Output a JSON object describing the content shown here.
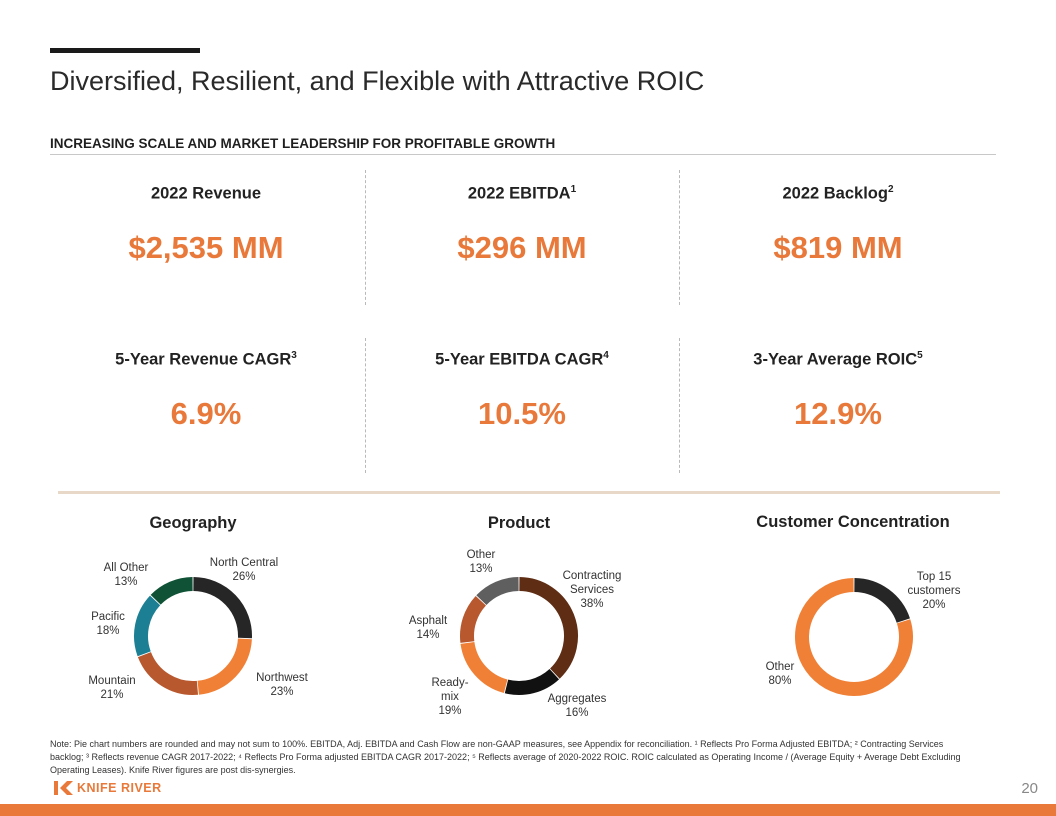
{
  "title": "Diversified, Resilient, and Flexible with Attractive ROIC",
  "subtitle": "INCREASING SCALE AND MARKET LEADERSHIP FOR PROFITABLE GROWTH",
  "metrics": [
    {
      "label": "2022 Revenue",
      "sup": "",
      "value": "$2,535 MM"
    },
    {
      "label": "2022 EBITDA",
      "sup": "1",
      "value": "$296 MM"
    },
    {
      "label": "2022 Backlog",
      "sup": "2",
      "value": "$819 MM"
    },
    {
      "label": "5-Year Revenue CAGR",
      "sup": "3",
      "value": "6.9%"
    },
    {
      "label": "5-Year EBITDA CAGR",
      "sup": "4",
      "value": "10.5%"
    },
    {
      "label": "3-Year Average ROIC",
      "sup": "5",
      "value": "12.9%"
    }
  ],
  "chart_titles": {
    "geography": "Geography",
    "product": "Product",
    "customer": "Customer Concentration"
  },
  "chart_data": [
    {
      "type": "pie",
      "title": "Geography",
      "categories": [
        "North Central",
        "Northwest",
        "Mountain",
        "Pacific",
        "All Other"
      ],
      "values": [
        26,
        23,
        21,
        18,
        13
      ],
      "value_labels": [
        "26%",
        "23%",
        "21%",
        "18%",
        "13%"
      ],
      "colors": [
        "#262626",
        "#f08036",
        "#b8582e",
        "#1c7f93",
        "#0f5236"
      ]
    },
    {
      "type": "pie",
      "title": "Product",
      "categories": [
        "Contracting Services",
        "Aggregates",
        "Ready-mix",
        "Asphalt",
        "Other"
      ],
      "label_lines": [
        [
          "Contracting",
          "Services"
        ],
        [
          "Aggregates"
        ],
        [
          "Ready-",
          "mix"
        ],
        [
          "Asphalt"
        ],
        [
          "Other"
        ]
      ],
      "values": [
        38,
        16,
        19,
        14,
        13
      ],
      "value_labels": [
        "38%",
        "16%",
        "19%",
        "14%",
        "13%"
      ],
      "colors": [
        "#5e2d14",
        "#111111",
        "#f08036",
        "#b8582e",
        "#5f5f5f"
      ]
    },
    {
      "type": "pie",
      "title": "Customer Concentration",
      "categories": [
        "Top 15 customers",
        "Other"
      ],
      "label_lines": [
        [
          "Top 15",
          "customers"
        ],
        [
          "Other"
        ]
      ],
      "values": [
        20,
        80
      ],
      "value_labels": [
        "20%",
        "80%"
      ],
      "colors": [
        "#262626",
        "#f08036"
      ]
    }
  ],
  "note": "Note: Pie chart numbers are rounded and may not sum to 100%. EBITDA, Adj. EBITDA and Cash Flow are non-GAAP measures, see Appendix for reconciliation. ¹ Reflects Pro Forma Adjusted EBITDA; ² Contracting Services backlog; ³ Reflects revenue CAGR 2017-2022; ⁴ Reflects Pro Forma adjusted EBITDA CAGR 2017-2022; ⁵ Reflects average of 2020-2022 ROIC. ROIC calculated as Operating Income / (Average Equity + Average Debt Excluding Operating Leases). Knife River figures are post dis-synergies.",
  "logo_text": "KNIFE RIVER",
  "page_number": "20",
  "colors": {
    "accent": "#e8793a"
  }
}
